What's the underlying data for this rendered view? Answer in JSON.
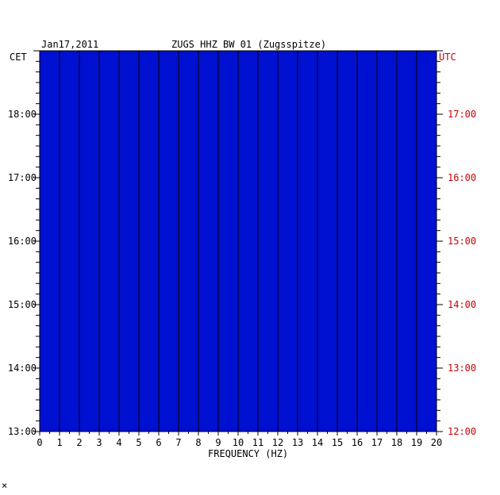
{
  "chart_data": {
    "type": "heatmap",
    "title_left": "Jan17,2011",
    "title_center": "ZUGS HHZ BW 01 (Zugsspitze)",
    "xlabel": "FREQUENCY (HZ)",
    "left_axis_label": "CET",
    "right_axis_label": "UTC",
    "x_ticks": [
      "0",
      "1",
      "2",
      "3",
      "4",
      "5",
      "6",
      "7",
      "8",
      "9",
      "10",
      "11",
      "12",
      "13",
      "14",
      "15",
      "16",
      "17",
      "18",
      "19",
      "20"
    ],
    "xlim": [
      0,
      20
    ],
    "left_ticks": [
      "18:00",
      "17:00",
      "16:00",
      "15:00",
      "14:00",
      "13:00"
    ],
    "right_ticks": [
      "17:00",
      "16:00",
      "15:00",
      "14:00",
      "13:00",
      "12:00"
    ],
    "hour_fraction_range": [
      13.0,
      19.0
    ],
    "strong_frequency_lines_hz": [
      0.3,
      9.0,
      10.0,
      11.0,
      12.0,
      13.0,
      15.0,
      16.0
    ],
    "colors": {
      "background_low": "#0000c8",
      "mid": "#00a0ff",
      "high": "#ffff00",
      "peak": "#ff0000",
      "utc_label": "#cc0000"
    }
  },
  "footer_mark": "×"
}
